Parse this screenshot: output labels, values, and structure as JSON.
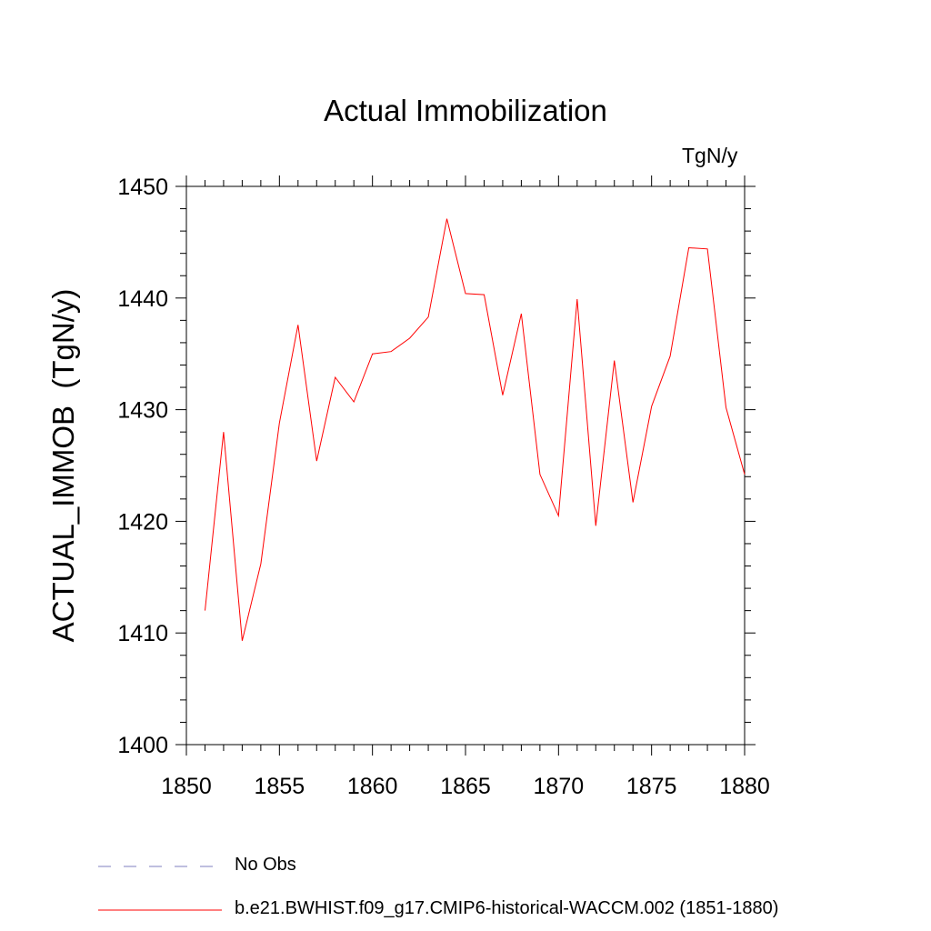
{
  "chart_data": {
    "type": "line",
    "title": "Actual Immobilization",
    "units_label": "TgN/y",
    "ylabel": "ACTUAL_IMMOB  (TgN/y)",
    "xlabel": "",
    "xlim": [
      1850,
      1880
    ],
    "ylim": [
      1400,
      1450
    ],
    "xticks": [
      1850,
      1855,
      1860,
      1865,
      1870,
      1875,
      1880
    ],
    "yticks": [
      1400,
      1410,
      1420,
      1430,
      1440,
      1450
    ],
    "legend_position": "bottom-left",
    "series": [
      {
        "name": "b.e21.BWHIST.f09_g17.CMIP6-historical-WACCM.002 (1851-1880)",
        "color": "#ff0000",
        "style": "solid",
        "x": [
          1851,
          1852,
          1853,
          1854,
          1855,
          1856,
          1857,
          1858,
          1859,
          1860,
          1861,
          1862,
          1863,
          1864,
          1865,
          1866,
          1867,
          1868,
          1869,
          1870,
          1871,
          1872,
          1873,
          1874,
          1875,
          1876,
          1877,
          1878,
          1879,
          1880
        ],
        "values": [
          1412.0,
          1428.0,
          1409.3,
          1416.2,
          1428.8,
          1437.6,
          1425.4,
          1432.9,
          1430.7,
          1435.0,
          1435.2,
          1436.4,
          1438.3,
          1447.1,
          1440.4,
          1440.3,
          1431.3,
          1438.6,
          1424.2,
          1420.5,
          1439.9,
          1419.6,
          1434.4,
          1421.7,
          1430.3,
          1434.8,
          1444.5,
          1444.4,
          1430.2,
          1424.2
        ]
      }
    ],
    "legend": [
      {
        "label": "No Obs",
        "color": "#7f7fbf",
        "style": "dashed"
      },
      {
        "label": "b.e21.BWHIST.f09_g17.CMIP6-historical-WACCM.002 (1851-1880)",
        "color": "#ff0000",
        "style": "solid"
      }
    ]
  }
}
